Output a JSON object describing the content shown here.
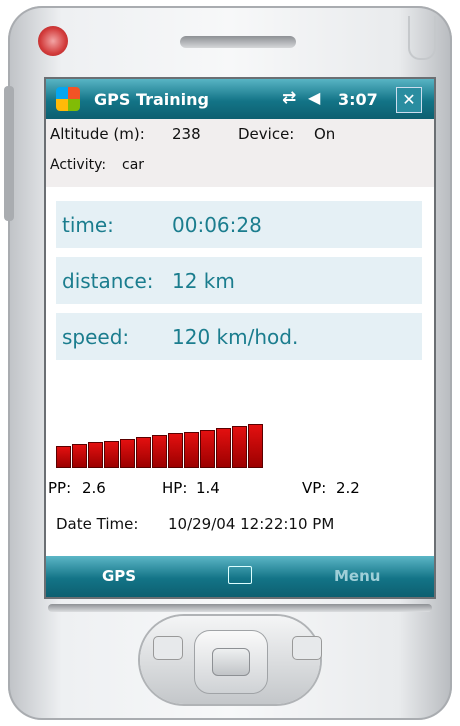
{
  "status_bar": {
    "app_title": "GPS Training",
    "clock": "3:07"
  },
  "info": {
    "altitude_label": "Altitude (m):",
    "altitude_value": "238",
    "device_label": "Device:",
    "device_value": "On",
    "activity_label": "Activity:",
    "activity_value": "car"
  },
  "readouts": [
    {
      "label": "time:",
      "value": "00:06:28"
    },
    {
      "label": "distance:",
      "value": "12 km"
    },
    {
      "label": "speed:",
      "value": "120 km/hod."
    }
  ],
  "stats": [
    {
      "label": "PP:",
      "value": "2.6"
    },
    {
      "label": "HP:",
      "value": "1.4"
    },
    {
      "label": "VP:",
      "value": "2.2"
    }
  ],
  "datetime": {
    "label": "Date Time:",
    "value": "10/29/04 12:22:10 PM"
  },
  "softkeys": {
    "left": "GPS",
    "right": "Menu"
  }
}
